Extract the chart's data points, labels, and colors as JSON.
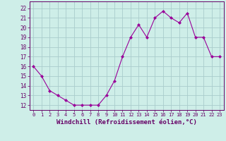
{
  "x": [
    0,
    1,
    2,
    3,
    4,
    5,
    6,
    7,
    8,
    9,
    10,
    11,
    12,
    13,
    14,
    15,
    16,
    17,
    18,
    19,
    20,
    21,
    22,
    23
  ],
  "y": [
    16.0,
    15.0,
    13.5,
    13.0,
    12.5,
    12.0,
    12.0,
    12.0,
    12.0,
    13.0,
    14.5,
    17.0,
    19.0,
    20.3,
    19.0,
    21.0,
    21.7,
    21.0,
    20.5,
    21.5,
    19.0,
    19.0,
    17.0,
    17.0
  ],
  "line_color": "#990099",
  "marker": "D",
  "marker_size": 2.0,
  "bg_color": "#ceeee8",
  "grid_color": "#aacccc",
  "xlabel": "Windchill (Refroidissement éolien,°C)",
  "ylabel_ticks": [
    12,
    13,
    14,
    15,
    16,
    17,
    18,
    19,
    20,
    21,
    22
  ],
  "ylim": [
    11.5,
    22.7
  ],
  "xlim": [
    -0.5,
    23.5
  ],
  "xtick_labels": [
    "0",
    "1",
    "2",
    "3",
    "4",
    "5",
    "6",
    "7",
    "8",
    "9",
    "10",
    "11",
    "12",
    "13",
    "14",
    "15",
    "16",
    "17",
    "18",
    "19",
    "20",
    "21",
    "22",
    "23"
  ],
  "title_color": "#660066",
  "axis_color": "#660066",
  "font_family": "monospace",
  "xlabel_fontsize": 6.5,
  "ytick_fontsize": 5.5,
  "xtick_fontsize": 5.0
}
